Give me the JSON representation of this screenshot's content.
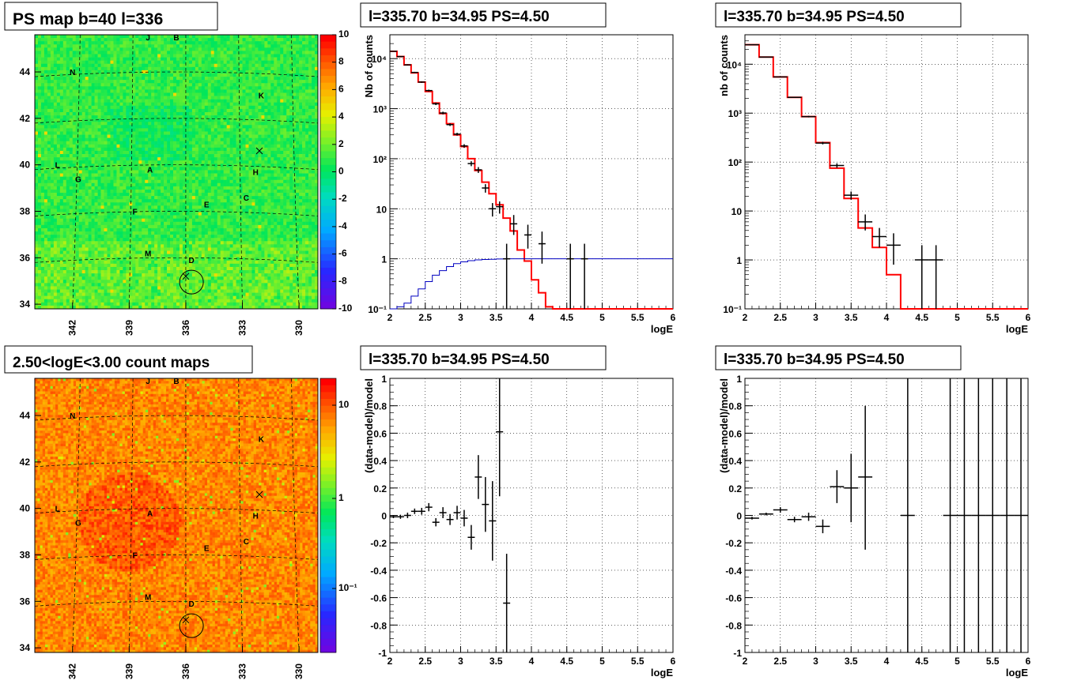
{
  "chart_data": [
    {
      "id": "ps-map",
      "type": "heatmap",
      "title": "PS map b=40 l=336",
      "x_ticks": [
        "342",
        "339",
        "336",
        "333",
        "330"
      ],
      "y_ticks": [
        "44",
        "42",
        "40",
        "38",
        "36",
        "34"
      ],
      "colorbar_ticks": [
        "10",
        "8",
        "6",
        "4",
        "2",
        "0",
        "-2",
        "-4",
        "-6",
        "-8",
        "-10"
      ],
      "xlim": [
        344,
        329
      ],
      "ylim": [
        33.8,
        45.6
      ],
      "source_labels": [
        {
          "text": "J",
          "l": 338.0,
          "b": 45.5
        },
        {
          "text": "B",
          "l": 336.5,
          "b": 45.5
        },
        {
          "text": "N",
          "l": 342.0,
          "b": 44.0
        },
        {
          "text": "K",
          "l": 332.0,
          "b": 43.0
        },
        {
          "text": "L",
          "l": 342.8,
          "b": 40.0
        },
        {
          "text": "A",
          "l": 337.9,
          "b": 39.8
        },
        {
          "text": "H",
          "l": 332.3,
          "b": 39.7
        },
        {
          "text": "G",
          "l": 341.7,
          "b": 39.4
        },
        {
          "text": "C",
          "l": 332.8,
          "b": 38.6
        },
        {
          "text": "E",
          "l": 334.9,
          "b": 38.3
        },
        {
          "text": "F",
          "l": 338.7,
          "b": 38.0
        },
        {
          "text": "M",
          "l": 338.0,
          "b": 36.2
        },
        {
          "text": "D",
          "l": 335.7,
          "b": 35.9
        }
      ],
      "markers": [
        {
          "type": "cross",
          "l": 332.1,
          "b": 40.6
        },
        {
          "type": "cross",
          "l": 336.0,
          "b": 35.2
        },
        {
          "type": "circle",
          "l": 335.7,
          "b": 34.95
        }
      ]
    },
    {
      "id": "count-map",
      "type": "heatmap",
      "title": "2.50<logE<3.00 count maps",
      "x_ticks": [
        "342",
        "339",
        "336",
        "333",
        "330"
      ],
      "y_ticks": [
        "44",
        "42",
        "40",
        "38",
        "36",
        "34"
      ],
      "colorbar_ticks": [
        "10",
        "1",
        "10⁻¹"
      ],
      "xlim": [
        344,
        329
      ],
      "ylim": [
        33.8,
        45.6
      ]
    },
    {
      "id": "spectrum-fine",
      "type": "line",
      "title": "l=335.70 b=34.95 PS=4.50",
      "xlabel": "logE",
      "ylabel": "Nb of counts",
      "log_y": true,
      "xlim": [
        2,
        6
      ],
      "ylim": [
        0.1,
        30000
      ],
      "x_ticks": [
        "2",
        "2.5",
        "3",
        "3.5",
        "4",
        "4.5",
        "5",
        "5.5",
        "6"
      ],
      "y_ticks": [
        "10⁻¹",
        "1",
        "10",
        "10²",
        "10³",
        "10⁴"
      ],
      "bin_width": 0.1,
      "series": [
        {
          "color": "#ff0000",
          "bins_lo": [
            2.0,
            2.1,
            2.2,
            2.3,
            2.4,
            2.5,
            2.6,
            2.7,
            2.8,
            2.9,
            3.0,
            3.1,
            3.2,
            3.3,
            3.4,
            3.5,
            3.6,
            3.7,
            3.8,
            3.9,
            4.0,
            4.1,
            4.2,
            4.3,
            4.4,
            4.5,
            4.6,
            4.7,
            4.8,
            4.9,
            5.0,
            5.1,
            5.2,
            5.3,
            5.4,
            5.5,
            5.6,
            5.7,
            5.8,
            5.9
          ],
          "values": [
            14000,
            11000,
            7500,
            5200,
            3400,
            2200,
            1300,
            800,
            500,
            300,
            175,
            100,
            58,
            34,
            20,
            12,
            6.5,
            3.6,
            1.5,
            0.9,
            0.38,
            0.21,
            0.11,
            0.1,
            0.1,
            0.1,
            0.1,
            0.1,
            0.1,
            0.1,
            0.1,
            0.1,
            0.1,
            0.1,
            0.1,
            0.1,
            0.1,
            0.1,
            0.1,
            0.1
          ]
        },
        {
          "color": "#0000c0",
          "bins_lo": [
            2.0,
            2.1,
            2.2,
            2.3,
            2.4,
            2.5,
            2.6,
            2.7,
            2.8,
            2.9,
            3.0,
            3.1,
            3.2,
            3.3,
            3.4,
            3.5,
            3.6,
            3.7,
            3.8,
            3.9,
            4.0,
            4.1,
            4.2,
            4.3,
            4.4,
            4.5,
            4.6,
            4.7,
            4.8,
            4.9,
            5.0,
            5.1,
            5.2,
            5.3,
            5.4,
            5.5,
            5.6,
            5.7,
            5.8,
            5.9
          ],
          "values": [
            0.1,
            0.11,
            0.13,
            0.18,
            0.25,
            0.35,
            0.47,
            0.58,
            0.7,
            0.8,
            0.87,
            0.92,
            0.95,
            0.97,
            0.98,
            0.99,
            1,
            1,
            1,
            1,
            1,
            1,
            1,
            1,
            1,
            1,
            1,
            1,
            1,
            1,
            1,
            1,
            1,
            1,
            1,
            1,
            1,
            1,
            1,
            1
          ]
        }
      ],
      "points": [
        {
          "x": 2.05,
          "y": 14000,
          "lo": 13800,
          "hi": 14200
        },
        {
          "x": 2.15,
          "y": 11000,
          "lo": 10800,
          "hi": 11200
        },
        {
          "x": 2.25,
          "y": 7500,
          "lo": 7300,
          "hi": 7700
        },
        {
          "x": 2.35,
          "y": 5300,
          "lo": 5150,
          "hi": 5450
        },
        {
          "x": 2.45,
          "y": 3400,
          "lo": 3280,
          "hi": 3520
        },
        {
          "x": 2.55,
          "y": 2300,
          "lo": 2200,
          "hi": 2400
        },
        {
          "x": 2.65,
          "y": 1250,
          "lo": 1180,
          "hi": 1320
        },
        {
          "x": 2.75,
          "y": 820,
          "lo": 770,
          "hi": 870
        },
        {
          "x": 2.85,
          "y": 480,
          "lo": 450,
          "hi": 510
        },
        {
          "x": 2.95,
          "y": 310,
          "lo": 290,
          "hi": 330
        },
        {
          "x": 3.05,
          "y": 180,
          "lo": 165,
          "hi": 195
        },
        {
          "x": 3.15,
          "y": 80,
          "lo": 71,
          "hi": 89
        },
        {
          "x": 3.25,
          "y": 60,
          "lo": 52,
          "hi": 68
        },
        {
          "x": 3.35,
          "y": 26,
          "lo": 21,
          "hi": 31
        },
        {
          "x": 3.45,
          "y": 10,
          "lo": 7,
          "hi": 13
        },
        {
          "x": 3.55,
          "y": 11,
          "lo": 8,
          "hi": 14
        },
        {
          "x": 3.65,
          "y": 1,
          "lo": 0.1,
          "hi": 2
        },
        {
          "x": 3.75,
          "y": 5,
          "lo": 3,
          "hi": 7.5
        },
        {
          "x": 3.95,
          "y": 3,
          "lo": 1.6,
          "hi": 4.8
        },
        {
          "x": 4.15,
          "y": 2,
          "lo": 0.8,
          "hi": 3.5
        },
        {
          "x": 4.55,
          "y": 1,
          "lo": 0.1,
          "hi": 2
        },
        {
          "x": 4.75,
          "y": 1,
          "lo": 0.1,
          "hi": 2
        }
      ]
    },
    {
      "id": "spectrum-coarse",
      "type": "line",
      "title": "l=335.70 b=34.95 PS=4.50",
      "xlabel": "logE",
      "ylabel": "nb of counts",
      "log_y": true,
      "xlim": [
        2,
        6
      ],
      "ylim": [
        0.1,
        40000
      ],
      "x_ticks": [
        "2",
        "2.5",
        "3",
        "3.5",
        "4",
        "4.5",
        "5",
        "5.5",
        "6"
      ],
      "y_ticks": [
        "10⁻¹",
        "1",
        "10",
        "10²",
        "10³",
        "10⁴"
      ],
      "bin_width": 0.2,
      "series": [
        {
          "color": "#ff0000",
          "bins_lo": [
            2.0,
            2.2,
            2.4,
            2.6,
            2.8,
            3.0,
            3.2,
            3.4,
            3.6,
            3.8,
            4.0,
            4.2,
            4.4,
            4.6,
            4.8,
            5.0,
            5.2,
            5.4,
            5.6,
            5.8
          ],
          "values": [
            25000,
            14000,
            5500,
            2100,
            850,
            250,
            75,
            18,
            4.5,
            1.8,
            0.5,
            0.1,
            0.1,
            0.1,
            0.1,
            0.1,
            0.1,
            0.1,
            0.1,
            0.1
          ]
        }
      ],
      "points": [
        {
          "x": 2.1,
          "y": 25000,
          "lo": 24700,
          "hi": 25300
        },
        {
          "x": 2.3,
          "y": 14000,
          "lo": 13800,
          "hi": 14200
        },
        {
          "x": 2.5,
          "y": 5500,
          "lo": 5400,
          "hi": 5600
        },
        {
          "x": 2.7,
          "y": 2100,
          "lo": 2050,
          "hi": 2150
        },
        {
          "x": 2.9,
          "y": 850,
          "lo": 820,
          "hi": 880
        },
        {
          "x": 3.1,
          "y": 245,
          "lo": 230,
          "hi": 260
        },
        {
          "x": 3.3,
          "y": 85,
          "lo": 76,
          "hi": 94
        },
        {
          "x": 3.5,
          "y": 21,
          "lo": 17,
          "hi": 25
        },
        {
          "x": 3.7,
          "y": 6,
          "lo": 4,
          "hi": 8.5
        },
        {
          "x": 3.9,
          "y": 3,
          "lo": 1.8,
          "hi": 4.5
        },
        {
          "x": 4.1,
          "y": 2,
          "lo": 0.8,
          "hi": 3.5
        },
        {
          "x": 4.5,
          "y": 1,
          "lo": 0.1,
          "hi": 2
        },
        {
          "x": 4.7,
          "y": 1,
          "lo": 0.1,
          "hi": 2
        }
      ]
    },
    {
      "id": "residuals-fine",
      "type": "scatter",
      "title": "l=335.70 b=34.95 PS=4.50",
      "xlabel": "logE",
      "ylabel": "(data-model)/model",
      "xlim": [
        2,
        6
      ],
      "ylim": [
        -1,
        1
      ],
      "x_ticks": [
        "2",
        "2.5",
        "3",
        "3.5",
        "4",
        "4.5",
        "5",
        "5.5",
        "6"
      ],
      "y_ticks": [
        "-1",
        "-0.8",
        "-0.6",
        "-0.4",
        "-0.2",
        "0",
        "0.2",
        "0.4",
        "0.6",
        "0.8",
        "1"
      ],
      "bin_width": 0.1,
      "points": [
        {
          "x": 2.05,
          "y": -0.01,
          "lo": -0.02,
          "hi": 0.0
        },
        {
          "x": 2.15,
          "y": -0.01,
          "lo": -0.025,
          "hi": 0.005
        },
        {
          "x": 2.25,
          "y": 0.0,
          "lo": -0.02,
          "hi": 0.02
        },
        {
          "x": 2.35,
          "y": 0.03,
          "lo": 0.01,
          "hi": 0.05
        },
        {
          "x": 2.45,
          "y": 0.03,
          "lo": 0.005,
          "hi": 0.055
        },
        {
          "x": 2.55,
          "y": 0.06,
          "lo": 0.03,
          "hi": 0.09
        },
        {
          "x": 2.65,
          "y": -0.05,
          "lo": -0.08,
          "hi": -0.02
        },
        {
          "x": 2.75,
          "y": 0.02,
          "lo": -0.02,
          "hi": 0.06
        },
        {
          "x": 2.85,
          "y": -0.03,
          "lo": -0.07,
          "hi": 0.01
        },
        {
          "x": 2.95,
          "y": 0.02,
          "lo": -0.03,
          "hi": 0.07
        },
        {
          "x": 3.05,
          "y": -0.02,
          "lo": -0.08,
          "hi": 0.04
        },
        {
          "x": 3.15,
          "y": -0.16,
          "lo": -0.25,
          "hi": -0.07
        },
        {
          "x": 3.25,
          "y": 0.28,
          "lo": 0.12,
          "hi": 0.44
        },
        {
          "x": 3.35,
          "y": 0.08,
          "lo": -0.12,
          "hi": 0.28
        },
        {
          "x": 3.45,
          "y": -0.04,
          "lo": -0.33,
          "hi": 0.25
        },
        {
          "x": 3.55,
          "y": 0.61,
          "lo": 0.14,
          "hi": 1.0
        },
        {
          "x": 3.65,
          "y": -0.64,
          "lo": -1.0,
          "hi": -0.28
        }
      ]
    },
    {
      "id": "residuals-coarse",
      "type": "scatter",
      "title": "l=335.70 b=34.95 PS=4.50",
      "xlabel": "logE",
      "ylabel": "(data-model)/model",
      "xlim": [
        2,
        6
      ],
      "ylim": [
        -1,
        1
      ],
      "x_ticks": [
        "2",
        "2.5",
        "3",
        "3.5",
        "4",
        "4.5",
        "5",
        "5.5",
        "6"
      ],
      "y_ticks": [
        "-1",
        "-0.8",
        "-0.6",
        "-0.4",
        "-0.2",
        "0",
        "0.2",
        "0.4",
        "0.6",
        "0.8",
        "1"
      ],
      "bin_width": 0.2,
      "points": [
        {
          "x": 2.1,
          "y": -0.02,
          "lo": -0.03,
          "hi": -0.01
        },
        {
          "x": 2.3,
          "y": 0.01,
          "lo": 0.0,
          "hi": 0.02
        },
        {
          "x": 2.5,
          "y": 0.04,
          "lo": 0.02,
          "hi": 0.06
        },
        {
          "x": 2.7,
          "y": -0.03,
          "lo": -0.05,
          "hi": -0.01
        },
        {
          "x": 2.9,
          "y": -0.01,
          "lo": -0.04,
          "hi": 0.02
        },
        {
          "x": 3.1,
          "y": -0.08,
          "lo": -0.13,
          "hi": -0.03
        },
        {
          "x": 3.3,
          "y": 0.21,
          "lo": 0.09,
          "hi": 0.33
        },
        {
          "x": 3.5,
          "y": 0.2,
          "lo": -0.05,
          "hi": 0.45
        },
        {
          "x": 3.7,
          "y": 0.28,
          "lo": -0.25,
          "hi": 0.8
        },
        {
          "x": 4.3,
          "y": 0,
          "lo": -1,
          "hi": 1
        },
        {
          "x": 4.9,
          "y": 0,
          "lo": -1,
          "hi": 1
        },
        {
          "x": 5.1,
          "y": 0,
          "lo": -1,
          "hi": 1
        },
        {
          "x": 5.3,
          "y": 0,
          "lo": -1,
          "hi": 1
        },
        {
          "x": 5.5,
          "y": 0,
          "lo": -1,
          "hi": 1
        },
        {
          "x": 5.7,
          "y": 0,
          "lo": -1,
          "hi": 1
        },
        {
          "x": 5.9,
          "y": 0,
          "lo": -1,
          "hi": 1
        }
      ]
    }
  ]
}
